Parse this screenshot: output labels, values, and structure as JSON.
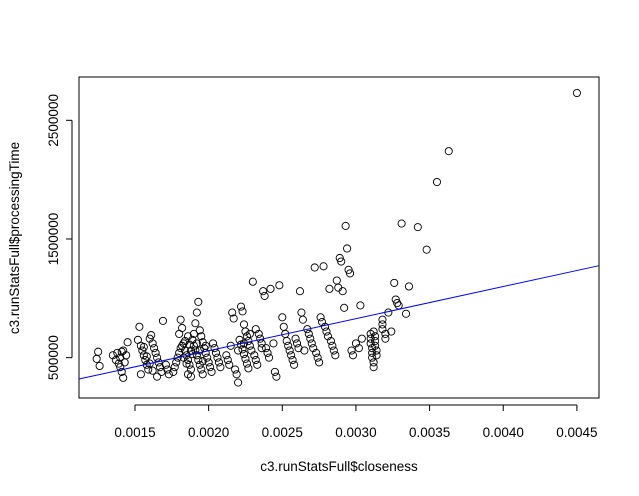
{
  "chart_data": {
    "type": "scatter",
    "title": "",
    "xlabel": "c3.runStatsFull$closeness",
    "ylabel": "c3.runStatsFull$processingTime",
    "xlim": [
      0.00112,
      0.00465
    ],
    "ylim": [
      160000,
      2865000
    ],
    "x_ticks": [
      0.0015,
      0.002,
      0.0025,
      0.003,
      0.0035,
      0.004,
      0.0045
    ],
    "x_tick_labels": [
      "0.0015",
      "0.0020",
      "0.0025",
      "0.0030",
      "0.0035",
      "0.0040",
      "0.0045"
    ],
    "y_ticks": [
      500000,
      1500000,
      2500000
    ],
    "y_tick_labels": [
      "500000",
      "1500000",
      "2500000"
    ],
    "grid": false,
    "legend": "none",
    "colors": {
      "points": "#000000",
      "fit_line": "#0000ff",
      "axes": "#000000"
    },
    "fit_line": {
      "x": [
        0.00112,
        0.00465
      ],
      "y": [
        320000,
        1275000
      ]
    },
    "points": [
      [
        0.00125,
        550000
      ],
      [
        0.00124,
        490000
      ],
      [
        0.00126,
        430000
      ],
      [
        0.00135,
        520000
      ],
      [
        0.00137,
        480000
      ],
      [
        0.00138,
        540000
      ],
      [
        0.0014,
        500000
      ],
      [
        0.0014,
        420000
      ],
      [
        0.00141,
        380000
      ],
      [
        0.00142,
        330000
      ],
      [
        0.00143,
        460000
      ],
      [
        0.00144,
        520000
      ],
      [
        0.00142,
        560000
      ],
      [
        0.00145,
        630000
      ],
      [
        0.00139,
        450000
      ],
      [
        0.00141,
        550000
      ],
      [
        0.00153,
        760000
      ],
      [
        0.00152,
        650000
      ],
      [
        0.00154,
        600000
      ],
      [
        0.00155,
        560000
      ],
      [
        0.00156,
        520000
      ],
      [
        0.00157,
        480000
      ],
      [
        0.00158,
        440000
      ],
      [
        0.00159,
        400000
      ],
      [
        0.00154,
        360000
      ],
      [
        0.0016,
        660000
      ],
      [
        0.00161,
        690000
      ],
      [
        0.00162,
        620000
      ],
      [
        0.00163,
        580000
      ],
      [
        0.00164,
        540000
      ],
      [
        0.00165,
        500000
      ],
      [
        0.00166,
        460000
      ],
      [
        0.00167,
        420000
      ],
      [
        0.00168,
        380000
      ],
      [
        0.00165,
        340000
      ],
      [
        0.00169,
        810000
      ],
      [
        0.00171,
        440000
      ],
      [
        0.00172,
        400000
      ],
      [
        0.00173,
        360000
      ],
      [
        0.00156,
        590000
      ],
      [
        0.00158,
        510000
      ],
      [
        0.0016,
        450000
      ],
      [
        0.00162,
        390000
      ],
      [
        0.00176,
        380000
      ],
      [
        0.00177,
        420000
      ],
      [
        0.00178,
        460000
      ],
      [
        0.00179,
        500000
      ],
      [
        0.0018,
        540000
      ],
      [
        0.00181,
        580000
      ],
      [
        0.0018,
        700000
      ],
      [
        0.00181,
        820000
      ],
      [
        0.00182,
        750000
      ],
      [
        0.00183,
        620000
      ],
      [
        0.00184,
        560000
      ],
      [
        0.00185,
        520000
      ],
      [
        0.00186,
        480000
      ],
      [
        0.00187,
        440000
      ],
      [
        0.00188,
        400000
      ],
      [
        0.00186,
        360000
      ],
      [
        0.00189,
        650000
      ],
      [
        0.0019,
        600000
      ],
      [
        0.00191,
        560000
      ],
      [
        0.00192,
        520000
      ],
      [
        0.00193,
        480000
      ],
      [
        0.00194,
        440000
      ],
      [
        0.00195,
        400000
      ],
      [
        0.00196,
        360000
      ],
      [
        0.00193,
        970000
      ],
      [
        0.00192,
        880000
      ],
      [
        0.00191,
        790000
      ],
      [
        0.00194,
        730000
      ],
      [
        0.00195,
        680000
      ],
      [
        0.00196,
        630000
      ],
      [
        0.00197,
        580000
      ],
      [
        0.00198,
        540000
      ],
      [
        0.00199,
        500000
      ],
      [
        0.002,
        460000
      ],
      [
        0.00201,
        420000
      ],
      [
        0.00202,
        380000
      ],
      [
        0.00203,
        620000
      ],
      [
        0.00204,
        580000
      ],
      [
        0.00205,
        540000
      ],
      [
        0.00206,
        500000
      ],
      [
        0.00207,
        460000
      ],
      [
        0.00208,
        420000
      ],
      [
        0.00182,
        600000
      ],
      [
        0.00184,
        640000
      ],
      [
        0.00186,
        680000
      ],
      [
        0.00188,
        560000
      ],
      [
        0.0019,
        700000
      ],
      [
        0.00183,
        500000
      ],
      [
        0.00185,
        450000
      ],
      [
        0.00187,
        610000
      ],
      [
        0.00189,
        530000
      ],
      [
        0.00192,
        620000
      ],
      [
        0.00194,
        560000
      ],
      [
        0.00196,
        470000
      ],
      [
        0.00198,
        600000
      ],
      [
        0.00188,
        340000
      ],
      [
        0.00212,
        520000
      ],
      [
        0.00213,
        480000
      ],
      [
        0.00214,
        440000
      ],
      [
        0.00215,
        600000
      ],
      [
        0.00216,
        880000
      ],
      [
        0.00217,
        830000
      ],
      [
        0.00218,
        400000
      ],
      [
        0.00219,
        360000
      ],
      [
        0.0022,
        290000
      ],
      [
        0.00221,
        650000
      ],
      [
        0.00222,
        610000
      ],
      [
        0.00223,
        570000
      ],
      [
        0.00224,
        530000
      ],
      [
        0.00225,
        490000
      ],
      [
        0.00226,
        450000
      ],
      [
        0.00227,
        410000
      ],
      [
        0.00222,
        930000
      ],
      [
        0.00223,
        890000
      ],
      [
        0.00224,
        780000
      ],
      [
        0.00225,
        720000
      ],
      [
        0.00226,
        680000
      ],
      [
        0.00227,
        640000
      ],
      [
        0.00228,
        600000
      ],
      [
        0.00229,
        560000
      ],
      [
        0.0023,
        1140000
      ],
      [
        0.00231,
        520000
      ],
      [
        0.00232,
        480000
      ],
      [
        0.00233,
        440000
      ],
      [
        0.00234,
        700000
      ],
      [
        0.00235,
        660000
      ],
      [
        0.00236,
        620000
      ],
      [
        0.00237,
        1060000
      ],
      [
        0.00238,
        1020000
      ],
      [
        0.00239,
        580000
      ],
      [
        0.0024,
        540000
      ],
      [
        0.00241,
        500000
      ],
      [
        0.00242,
        1080000
      ],
      [
        0.00244,
        620000
      ],
      [
        0.00245,
        380000
      ],
      [
        0.00246,
        340000
      ],
      [
        0.00248,
        1110000
      ],
      [
        0.0022,
        560000
      ],
      [
        0.00224,
        620000
      ],
      [
        0.00228,
        700000
      ],
      [
        0.00232,
        740000
      ],
      [
        0.00236,
        580000
      ],
      [
        0.0025,
        840000
      ],
      [
        0.00251,
        760000
      ],
      [
        0.00252,
        700000
      ],
      [
        0.00253,
        640000
      ],
      [
        0.00254,
        600000
      ],
      [
        0.00255,
        560000
      ],
      [
        0.00256,
        520000
      ],
      [
        0.00257,
        480000
      ],
      [
        0.00258,
        440000
      ],
      [
        0.00259,
        660000
      ],
      [
        0.0026,
        620000
      ],
      [
        0.00261,
        580000
      ],
      [
        0.00262,
        1060000
      ],
      [
        0.00263,
        880000
      ],
      [
        0.00264,
        820000
      ],
      [
        0.00265,
        560000
      ],
      [
        0.00267,
        740000
      ],
      [
        0.00268,
        700000
      ],
      [
        0.00269,
        660000
      ],
      [
        0.0027,
        620000
      ],
      [
        0.00271,
        580000
      ],
      [
        0.00272,
        1260000
      ],
      [
        0.00273,
        540000
      ],
      [
        0.00274,
        500000
      ],
      [
        0.00275,
        460000
      ],
      [
        0.00276,
        840000
      ],
      [
        0.00277,
        800000
      ],
      [
        0.00278,
        1270000
      ],
      [
        0.00279,
        760000
      ],
      [
        0.0028,
        720000
      ],
      [
        0.00281,
        680000
      ],
      [
        0.00282,
        1080000
      ],
      [
        0.00283,
        640000
      ],
      [
        0.00284,
        600000
      ],
      [
        0.00285,
        560000
      ],
      [
        0.00286,
        520000
      ],
      [
        0.00287,
        1150000
      ],
      [
        0.00288,
        1090000
      ],
      [
        0.00289,
        1340000
      ],
      [
        0.0029,
        1310000
      ],
      [
        0.00291,
        1060000
      ],
      [
        0.00292,
        920000
      ],
      [
        0.00293,
        1610000
      ],
      [
        0.00294,
        1420000
      ],
      [
        0.00295,
        1240000
      ],
      [
        0.00296,
        1210000
      ],
      [
        0.00297,
        560000
      ],
      [
        0.00298,
        520000
      ],
      [
        0.003,
        620000
      ],
      [
        0.00302,
        580000
      ],
      [
        0.00303,
        940000
      ],
      [
        0.00304,
        660000
      ],
      [
        0.0031,
        700000
      ],
      [
        0.0031,
        660000
      ],
      [
        0.0031,
        620000
      ],
      [
        0.00311,
        580000
      ],
      [
        0.00311,
        540000
      ],
      [
        0.00311,
        500000
      ],
      [
        0.00312,
        460000
      ],
      [
        0.00312,
        420000
      ],
      [
        0.00312,
        720000
      ],
      [
        0.00313,
        680000
      ],
      [
        0.00313,
        640000
      ],
      [
        0.00313,
        600000
      ],
      [
        0.00314,
        560000
      ],
      [
        0.00314,
        520000
      ],
      [
        0.00318,
        820000
      ],
      [
        0.00318,
        780000
      ],
      [
        0.00318,
        740000
      ],
      [
        0.0032,
        700000
      ],
      [
        0.0032,
        660000
      ],
      [
        0.00322,
        880000
      ],
      [
        0.00324,
        720000
      ],
      [
        0.00326,
        1130000
      ],
      [
        0.00327,
        990000
      ],
      [
        0.00328,
        960000
      ],
      [
        0.00329,
        940000
      ],
      [
        0.00331,
        1630000
      ],
      [
        0.00334,
        870000
      ],
      [
        0.00336,
        1100000
      ],
      [
        0.00342,
        1600000
      ],
      [
        0.00348,
        1410000
      ],
      [
        0.00355,
        1980000
      ],
      [
        0.00363,
        2240000
      ],
      [
        0.0045,
        2730000
      ]
    ]
  }
}
